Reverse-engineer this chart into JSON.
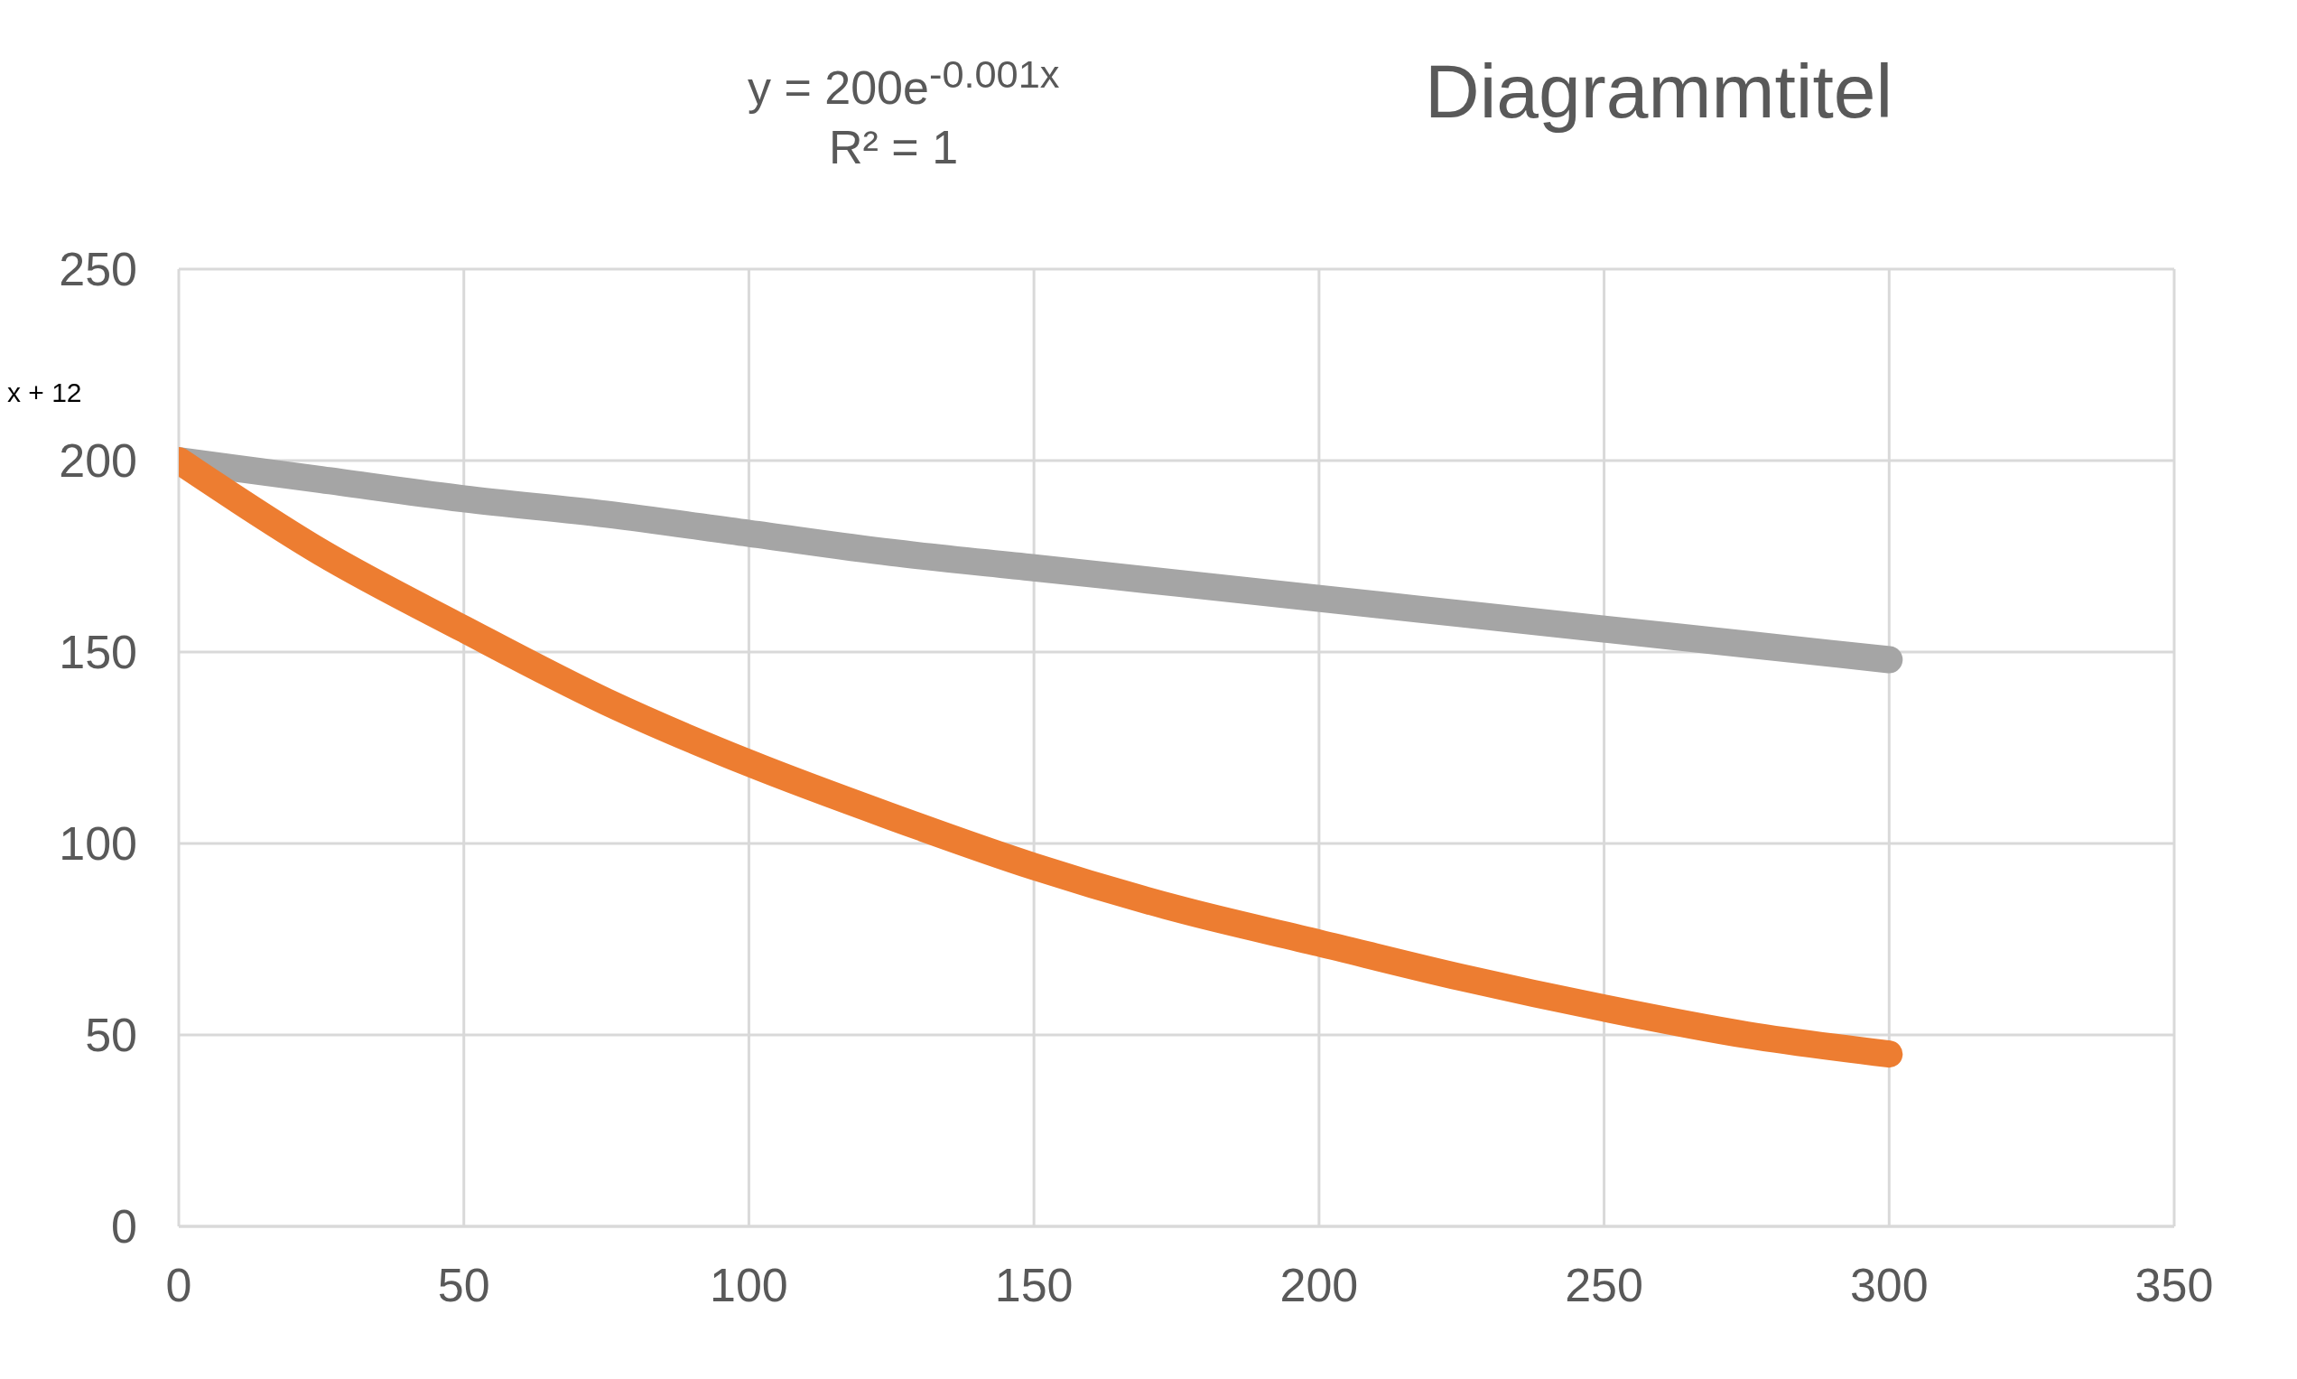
{
  "chart_data": {
    "type": "line",
    "title": "Diagrammtitel",
    "annotations": [
      "y = 200e$^{-0.001x}$",
      "R² = 1",
      "x + 12"
    ],
    "x": [
      0,
      25,
      50,
      75,
      100,
      125,
      150,
      175,
      200,
      225,
      250,
      275,
      300
    ],
    "series": [
      {
        "color": "#a5a5a5",
        "values": [
          200,
          195,
          190,
          186,
          181,
          176,
          172,
          168,
          164,
          160,
          156,
          152,
          148
        ]
      },
      {
        "color": "#ed7d31",
        "values": [
          200,
          176,
          156,
          137,
          121,
          107,
          94,
          83,
          74,
          65,
          57,
          50,
          45
        ]
      }
    ],
    "xlim": [
      0,
      350
    ],
    "xticks": [
      0,
      50,
      100,
      150,
      200,
      250,
      300,
      350
    ],
    "ylim": [
      0,
      250
    ],
    "yticks": [
      0,
      50,
      100,
      150,
      200,
      250
    ],
    "grid": true,
    "marker": "none",
    "line_style": "solid"
  }
}
